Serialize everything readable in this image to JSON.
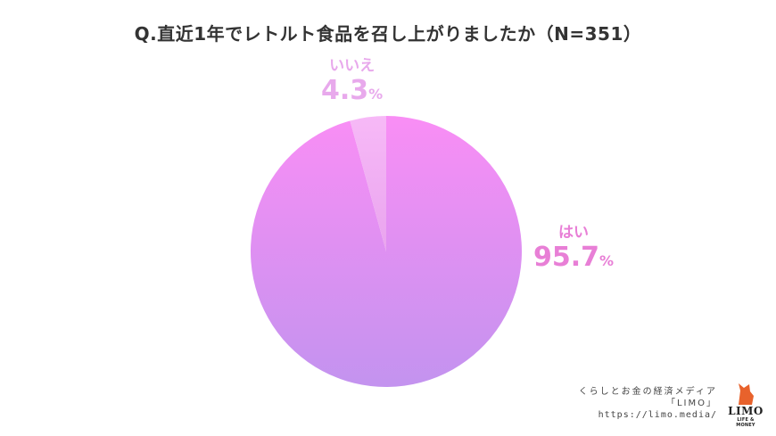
{
  "title": "Q.直近1年でレトルト食品を召し上がりましたか（N=351）",
  "chart_data": {
    "type": "pie",
    "title": "Q.直近1年でレトルト食品を召し上がりましたか（N=351）",
    "slices": [
      {
        "label": "はい",
        "value": 95.7,
        "value_text": "95.7",
        "unit": "%",
        "color_top": "#f98ef5",
        "color_bottom": "#c393ef"
      },
      {
        "label": "いいえ",
        "value": 4.3,
        "value_text": "4.3",
        "unit": "%",
        "color_top": "#f7b9f7",
        "color_bottom": "#e9a4ee"
      }
    ]
  },
  "footer": {
    "line1": "くらしとお金の経済メディア",
    "line2": "「LIMO」",
    "line3": "https://limo.media/"
  },
  "logo": {
    "text": "LIMO",
    "subtext": "LIFE & MONEY",
    "color": "#e8622c"
  }
}
